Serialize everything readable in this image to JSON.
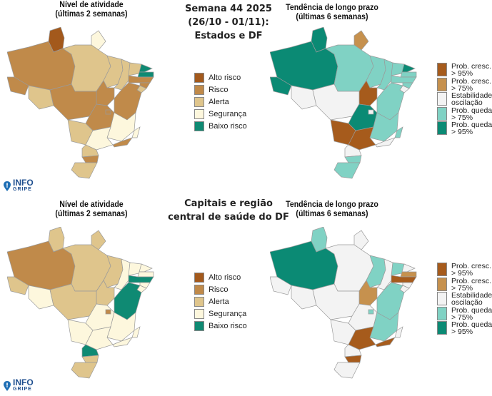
{
  "top": {
    "center_title": [
      "Semana 44 2025",
      "(26/10 - 01/11):",
      "Estados e DF"
    ],
    "activity_title": [
      "Nível de atividade",
      "(últimas 2 semanas)"
    ],
    "trend_title": [
      "Tendência de longo prazo",
      "(últimas 6 semanas)"
    ]
  },
  "bottom": {
    "center_title": [
      "Capitais e região",
      "central de saúde do DF"
    ],
    "activity_title": [
      "Nível de atividade",
      "(últimas 2 semanas)"
    ],
    "trend_title": [
      "Tendência de longo prazo",
      "(últimas 6 semanas)"
    ]
  },
  "activity_legend": [
    {
      "key": "alto",
      "label": "Alto risco",
      "color": "#a3591c"
    },
    {
      "key": "risco",
      "label": "Risco",
      "color": "#c08a4a"
    },
    {
      "key": "alerta",
      "label": "Alerta",
      "color": "#dfc58c"
    },
    {
      "key": "seg",
      "label": "Segurança",
      "color": "#fdf7dd"
    },
    {
      "key": "baixo",
      "label": "Baixo risco",
      "color": "#0f8a73"
    }
  ],
  "trend_legend": [
    {
      "key": "c95",
      "label": [
        "Prob. cresc.",
        "> 95%"
      ],
      "color": "#a65b1c"
    },
    {
      "key": "c75",
      "label": [
        "Prob. cresc.",
        "> 75%"
      ],
      "color": "#c6914e"
    },
    {
      "key": "est",
      "label": [
        "Estabilidade",
        "oscilação"
      ],
      "color": "#f3f3f3"
    },
    {
      "key": "q75",
      "label": [
        "Prob. queda",
        "> 75%"
      ],
      "color": "#80d2c4"
    },
    {
      "key": "q95",
      "label": [
        "Prob. queda",
        "> 95%"
      ],
      "color": "#0b8a74"
    }
  ],
  "logo": {
    "line1": "INFO",
    "line2": "GRIPE"
  },
  "maps": {
    "top_activity": {
      "RR": "alto",
      "AM": "risco",
      "AC": "risco",
      "RO": "alerta",
      "PA": "alerta",
      "AP": "seg",
      "MA": "alerta",
      "PI": "alerta",
      "CE": "alerta",
      "RN": "baixo",
      "PB": "baixo",
      "PE": "risco",
      "AL": "risco",
      "SE": "alerta",
      "BA": "risco",
      "TO": "risco",
      "MT": "risco",
      "GO": "risco",
      "DF": "risco",
      "MG": "seg",
      "ES": "seg",
      "MS": "alerta",
      "SP": "seg",
      "RJ": "risco",
      "PR": "alerta",
      "SC": "risco",
      "RS": "alerta"
    },
    "top_trend": {
      "RR": "q95",
      "AM": "q95",
      "AC": "q95",
      "RO": "est",
      "PA": "q75",
      "AP": "c75",
      "MA": "q75",
      "PI": "q75",
      "CE": "q75",
      "RN": "q95",
      "PB": "q75",
      "PE": "q75",
      "AL": "q75",
      "SE": "est",
      "BA": "q75",
      "TO": "c95",
      "MT": "est",
      "GO": "q95",
      "DF": "est",
      "MG": "q75",
      "ES": "q75",
      "MS": "c95",
      "SP": "c95",
      "RJ": "est",
      "PR": "est",
      "SC": "q75",
      "RS": "q75"
    },
    "bottom_activity": {
      "RR": "alerta",
      "AM": "risco",
      "AC": "alerta",
      "RO": "seg",
      "PA": "alerta",
      "AP": "alerta",
      "MA": "alerta",
      "PI": "seg",
      "CE": "seg",
      "RN": "seg",
      "PB": "seg",
      "PE": "baixo",
      "AL": "seg",
      "SE": "seg",
      "BA": "baixo",
      "TO": "alerta",
      "MT": "alerta",
      "GO": "seg",
      "DF": "risco",
      "MG": "seg",
      "ES": "seg",
      "MS": "seg",
      "SP": "seg",
      "RJ": "seg",
      "PR": "baixo",
      "SC": "alerta",
      "RS": "alerta"
    },
    "bottom_trend": {
      "RR": "q75",
      "AM": "q95",
      "AC": "est",
      "RO": "est",
      "PA": "est",
      "AP": "est",
      "MA": "q75",
      "PI": "est",
      "CE": "q75",
      "RN": "est",
      "PB": "c75",
      "PE": "c95",
      "AL": "est",
      "SE": "est",
      "BA": "q75",
      "TO": "c75",
      "MT": "est",
      "GO": "est",
      "DF": "q75",
      "MG": "q75",
      "ES": "est",
      "MS": "est",
      "SP": "c95",
      "RJ": "c95",
      "PR": "est",
      "SC": "c95",
      "RS": "est"
    }
  }
}
